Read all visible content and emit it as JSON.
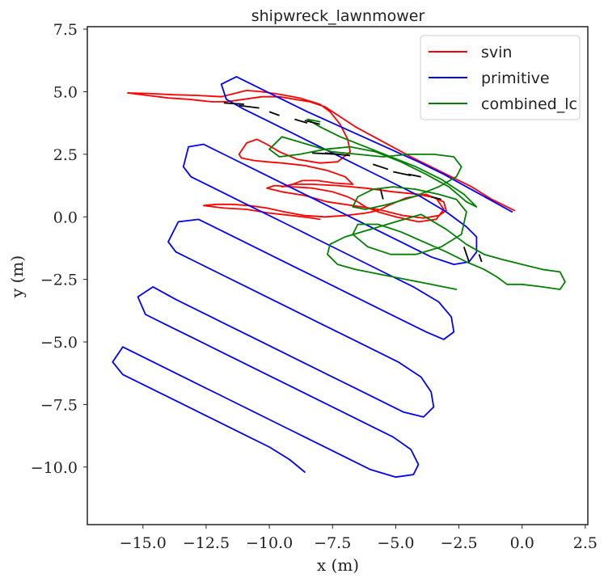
{
  "chart_data": {
    "type": "line",
    "title": "shipwreck_lawnmower",
    "xlabel": "x (m)",
    "ylabel": "y (m)",
    "xlim": [
      -17.2,
      2.6
    ],
    "ylim": [
      -12.3,
      7.6
    ],
    "xticks": [
      -15.0,
      -12.5,
      -10.0,
      -7.5,
      -5.0,
      -2.5,
      0.0,
      2.5
    ],
    "yticks": [
      7.5,
      5.0,
      2.5,
      0.0,
      -2.5,
      -5.0,
      -7.5,
      -10.0
    ],
    "xtick_labels": [
      "−15.0",
      "−12.5",
      "−10.0",
      "−7.5",
      "−5.0",
      "−2.5",
      "0.0",
      "2.5"
    ],
    "ytick_labels": [
      "7.5",
      "5.0",
      "2.5",
      "0.0",
      "−2.5",
      "−5.0",
      "−7.5",
      "−10.0"
    ],
    "grid": false,
    "legend_position": "top-right",
    "series": [
      {
        "name": "svin",
        "color": "#ff0000",
        "x": [
          -0.3,
          -0.6,
          -1.2,
          -2.0,
          -3.2,
          -4.4,
          -5.5,
          -6.6,
          -7.2,
          -7.8,
          -8.4,
          -9.0,
          -9.6,
          -10.3,
          -11.0,
          -11.7,
          -12.3,
          -13.2,
          -14.0,
          -14.8,
          -15.6,
          -14.8,
          -13.8,
          -12.8,
          -11.9,
          -11.3,
          -10.9,
          -10.3,
          -9.6,
          -8.8,
          -8.0,
          -7.6,
          -7.2,
          -6.9,
          -6.8,
          -7.3,
          -8.0,
          -8.9,
          -9.6,
          -10.1,
          -10.5,
          -10.9,
          -11.2,
          -11.1,
          -10.6,
          -10.1,
          -9.5,
          -8.6,
          -7.7,
          -7.0,
          -6.7,
          -7.4,
          -8.1,
          -8.7,
          -9.2,
          -9.5,
          -9.1,
          -8.3,
          -7.3,
          -6.2,
          -5.1,
          -4.1,
          -3.4,
          -3.1,
          -3.4,
          -4.1,
          -5.0,
          -5.7,
          -6.2,
          -6.5,
          -6.9,
          -7.5,
          -8.3,
          -9.1,
          -9.8,
          -10.1,
          -9.5,
          -8.6,
          -7.7,
          -6.7,
          -5.7,
          -4.7,
          -3.9,
          -3.3,
          -3.0,
          -3.1,
          -3.8,
          -4.6,
          -5.3,
          -5.7,
          -6.2,
          -7.0,
          -7.8,
          -8.6,
          -9.4,
          -10.1,
          -10.8,
          -11.5,
          -12.1,
          -12.6,
          -11.8,
          -10.9,
          -10.0,
          -9.1,
          -8.3,
          -8.0
        ],
        "y": [
          0.25,
          0.4,
          0.7,
          1.2,
          1.8,
          2.4,
          3.0,
          3.6,
          4.0,
          4.4,
          4.6,
          4.7,
          4.8,
          4.8,
          4.7,
          4.6,
          4.6,
          4.7,
          4.75,
          4.85,
          4.95,
          4.93,
          4.88,
          4.85,
          4.8,
          4.95,
          5.05,
          5.0,
          4.9,
          4.75,
          4.5,
          4.2,
          3.7,
          3.1,
          2.6,
          2.2,
          2.15,
          2.3,
          2.6,
          2.9,
          3.1,
          2.95,
          2.5,
          2.35,
          2.25,
          2.2,
          2.15,
          2.05,
          1.85,
          1.6,
          1.3,
          1.35,
          1.45,
          1.45,
          1.25,
          1.2,
          1.3,
          1.3,
          1.25,
          1.15,
          1.0,
          0.9,
          0.75,
          0.3,
          -0.1,
          -0.2,
          0.0,
          0.2,
          0.4,
          0.6,
          0.8,
          1.0,
          1.15,
          1.2,
          1.25,
          1.15,
          1.0,
          0.85,
          0.6,
          0.45,
          0.3,
          0.05,
          -0.05,
          0.05,
          0.25,
          0.6,
          0.9,
          0.75,
          0.45,
          0.25,
          0.15,
          0.05,
          0.0,
          0.05,
          0.2,
          0.35,
          0.45,
          0.5,
          0.5,
          0.45,
          0.35,
          0.3,
          0.15,
          0.05,
          -0.05,
          -0.1
        ]
      },
      {
        "name": "primitive",
        "color": "#0000ff",
        "x": [
          -0.4,
          -1.3,
          -2.2,
          -3.1,
          -4.1,
          -5.2,
          -6.3,
          -7.4,
          -8.5,
          -9.5,
          -10.5,
          -11.3,
          -11.9,
          -11.7,
          -11.0,
          -10.0,
          -9.0,
          -8.0,
          -7.0,
          -6.0,
          -5.0,
          -4.0,
          -3.0,
          -2.2,
          -1.8,
          -1.8,
          -2.1,
          -2.7,
          -3.6,
          -4.6,
          -5.6,
          -6.6,
          -7.6,
          -8.6,
          -9.6,
          -10.6,
          -11.6,
          -12.6,
          -13.2,
          -13.4,
          -13.1,
          -12.3,
          -11.3,
          -10.3,
          -9.3,
          -8.3,
          -7.3,
          -6.3,
          -5.3,
          -4.3,
          -3.3,
          -2.8,
          -2.7,
          -3.1,
          -3.8,
          -4.8,
          -5.8,
          -6.8,
          -7.8,
          -8.8,
          -9.8,
          -10.8,
          -11.8,
          -12.8,
          -13.6,
          -14.0,
          -13.7,
          -12.9,
          -11.9,
          -10.9,
          -9.9,
          -8.9,
          -7.9,
          -6.9,
          -5.9,
          -4.9,
          -4.0,
          -3.6,
          -3.5,
          -3.9,
          -4.7,
          -5.7,
          -6.7,
          -7.7,
          -8.7,
          -9.7,
          -10.7,
          -11.7,
          -12.7,
          -13.7,
          -14.6,
          -15.2,
          -14.9,
          -14.1,
          -13.1,
          -12.1,
          -11.1,
          -10.1,
          -9.1,
          -8.1,
          -7.1,
          -6.1,
          -5.1,
          -4.4,
          -4.1,
          -4.3,
          -5.0,
          -6.0,
          -7.0,
          -8.0,
          -9.0,
          -10.0,
          -11.0,
          -12.0,
          -13.0,
          -14.0,
          -15.0,
          -15.8,
          -16.2,
          -15.8,
          -15.0,
          -14.0,
          -13.0,
          -12.0,
          -11.0,
          -10.0,
          -9.2,
          -8.6
        ],
        "y": [
          0.2,
          0.7,
          1.2,
          1.7,
          2.2,
          2.7,
          3.2,
          3.7,
          4.2,
          4.7,
          5.2,
          5.6,
          5.3,
          4.7,
          4.3,
          3.8,
          3.3,
          2.8,
          2.3,
          1.8,
          1.3,
          0.8,
          0.2,
          -0.4,
          -0.8,
          -1.4,
          -1.8,
          -1.9,
          -1.6,
          -1.1,
          -0.6,
          -0.1,
          0.4,
          0.9,
          1.4,
          1.9,
          2.4,
          2.9,
          2.8,
          2.0,
          1.6,
          1.2,
          0.7,
          0.2,
          -0.3,
          -0.8,
          -1.3,
          -1.8,
          -2.3,
          -2.8,
          -3.4,
          -4.0,
          -4.6,
          -4.9,
          -4.6,
          -4.1,
          -3.6,
          -3.1,
          -2.6,
          -2.1,
          -1.6,
          -1.1,
          -0.6,
          -0.1,
          -0.2,
          -1.0,
          -1.4,
          -1.8,
          -2.3,
          -2.8,
          -3.3,
          -3.8,
          -4.3,
          -4.8,
          -5.3,
          -5.8,
          -6.4,
          -7.0,
          -7.6,
          -8.0,
          -7.8,
          -7.3,
          -6.8,
          -6.3,
          -5.8,
          -5.3,
          -4.8,
          -4.3,
          -3.8,
          -3.3,
          -2.8,
          -3.2,
          -3.9,
          -4.3,
          -4.8,
          -5.3,
          -5.8,
          -6.3,
          -6.8,
          -7.3,
          -7.8,
          -8.3,
          -8.8,
          -9.3,
          -9.9,
          -10.3,
          -10.4,
          -10.1,
          -9.6,
          -9.1,
          -8.6,
          -8.1,
          -7.6,
          -7.1,
          -6.6,
          -6.1,
          -5.6,
          -5.2,
          -5.8,
          -6.3,
          -6.7,
          -7.2,
          -7.7,
          -8.2,
          -8.7,
          -9.2,
          -9.7,
          -10.2
        ]
      },
      {
        "name": "combined_lc",
        "color": "#008000",
        "x": [
          -2.6,
          -3.6,
          -4.6,
          -5.6,
          -6.6,
          -7.3,
          -7.7,
          -7.6,
          -7.0,
          -6.0,
          -5.0,
          -4.0,
          -3.0,
          -2.2,
          -1.5,
          -0.8,
          0.0,
          0.8,
          1.5,
          1.7,
          1.5,
          0.8,
          0.0,
          -0.6,
          -1.0,
          -1.5,
          -2.2,
          -3.0,
          -3.9,
          -4.8,
          -5.7,
          -6.5,
          -6.7,
          -6.1,
          -5.2,
          -4.2,
          -3.2,
          -2.4,
          -2.2,
          -2.6,
          -3.3,
          -4.2,
          -5.1,
          -5.9,
          -6.5,
          -6.7,
          -6.2,
          -5.3,
          -4.3,
          -3.3,
          -2.6,
          -2.4,
          -2.7,
          -3.5,
          -4.5,
          -5.5,
          -6.5,
          -7.5,
          -8.5,
          -9.5,
          -10.0,
          -9.6,
          -8.8,
          -7.8,
          -6.8,
          -5.8,
          -4.8,
          -3.8,
          -2.9,
          -2.2,
          -1.8,
          -2.3,
          -3.2,
          -4.2,
          -5.2,
          -6.2,
          -7.2,
          -8.0,
          -8.5,
          -8.0
        ],
        "y": [
          -2.9,
          -2.7,
          -2.5,
          -2.3,
          -2.1,
          -1.9,
          -1.5,
          -1.1,
          -0.8,
          -0.5,
          -0.2,
          0.1,
          -0.5,
          -1.1,
          -1.5,
          -1.7,
          -1.9,
          -2.1,
          -2.2,
          -2.6,
          -2.9,
          -2.8,
          -2.7,
          -2.7,
          -2.4,
          -2.1,
          -1.8,
          -1.4,
          -1.0,
          -0.6,
          -0.3,
          -0.3,
          -0.7,
          -1.2,
          -1.5,
          -1.5,
          -1.2,
          -0.7,
          0.2,
          0.7,
          0.9,
          1.1,
          1.2,
          1.1,
          0.8,
          0.4,
          0.3,
          0.5,
          0.8,
          1.2,
          1.6,
          2.0,
          2.4,
          2.5,
          2.5,
          2.4,
          2.5,
          2.6,
          2.9,
          3.2,
          2.7,
          2.4,
          2.5,
          2.7,
          2.8,
          2.6,
          2.2,
          1.7,
          1.2,
          0.6,
          0.4,
          0.9,
          1.5,
          2.0,
          2.4,
          2.8,
          3.2,
          3.6,
          3.9,
          3.8
        ]
      }
    ],
    "loop_closures": {
      "color": "#000000",
      "segments": [
        [
          [
            -11.8,
            4.55
          ],
          [
            -11.0,
            4.5
          ]
        ],
        [
          [
            -11.2,
            4.45
          ],
          [
            -10.4,
            4.35
          ]
        ],
        [
          [
            -10.0,
            4.2
          ],
          [
            -9.6,
            4.05
          ]
        ],
        [
          [
            -9.0,
            3.9
          ],
          [
            -8.5,
            3.75
          ]
        ],
        [
          [
            -8.6,
            3.85
          ],
          [
            -8.0,
            3.7
          ]
        ],
        [
          [
            -8.3,
            2.55
          ],
          [
            -7.3,
            2.5
          ]
        ],
        [
          [
            -7.8,
            2.55
          ],
          [
            -6.8,
            2.45
          ]
        ],
        [
          [
            -5.9,
            2.1
          ],
          [
            -5.3,
            1.9
          ]
        ],
        [
          [
            -5.1,
            1.8
          ],
          [
            -4.4,
            1.65
          ]
        ],
        [
          [
            -4.5,
            1.7
          ],
          [
            -4.0,
            1.6
          ]
        ],
        [
          [
            -5.6,
            1.1
          ],
          [
            -5.5,
            0.7
          ]
        ],
        [
          [
            -3.6,
            0.8
          ],
          [
            -3.2,
            0.7
          ]
        ],
        [
          [
            -2.3,
            -1.2
          ],
          [
            -2.1,
            -1.8
          ]
        ],
        [
          [
            -1.7,
            -1.5
          ],
          [
            -1.6,
            -1.8
          ]
        ]
      ]
    }
  }
}
